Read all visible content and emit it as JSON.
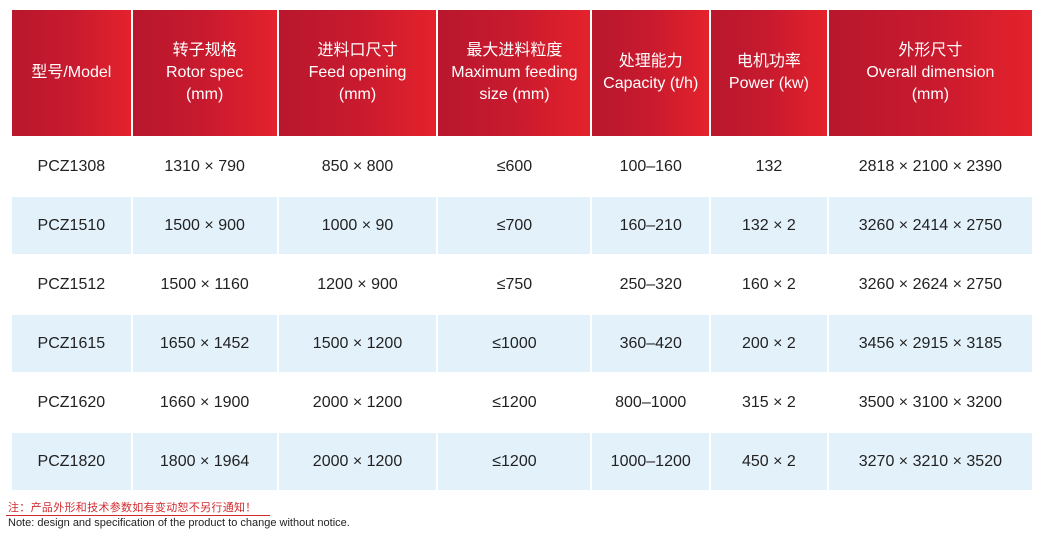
{
  "table": {
    "headers": [
      [
        "型号/Model"
      ],
      [
        "转子规格",
        "Rotor spec",
        "(mm)"
      ],
      [
        "进料口尺寸",
        "Feed opening",
        "(mm)"
      ],
      [
        "最大进料粒度",
        "Maximum feeding",
        "size (mm)"
      ],
      [
        "处理能力",
        "Capacity (t/h)"
      ],
      [
        "电机功率",
        "Power (kw)"
      ],
      [
        "外形尺寸",
        "Overall dimension",
        "(mm)"
      ]
    ],
    "rows": [
      [
        "PCZ1308",
        "1310 × 790",
        "850 × 800",
        "≤600",
        "100–160",
        "132",
        "2818 × 2100 × 2390"
      ],
      [
        "PCZ1510",
        "1500 × 900",
        "1000 × 90",
        "≤700",
        "160–210",
        "132 × 2",
        "3260 × 2414 × 2750"
      ],
      [
        "PCZ1512",
        "1500 × 1160",
        "1200 × 900",
        "≤750",
        "250–320",
        "160 × 2",
        "3260 × 2624 × 2750"
      ],
      [
        "PCZ1615",
        "1650 × 1452",
        "1500 × 1200",
        "≤1000",
        "360–420",
        "200 × 2",
        "3456 × 2915 × 3185"
      ],
      [
        "PCZ1620",
        "1660 × 1900",
        "2000 × 1200",
        "≤1200",
        "800–1000",
        "315 × 2",
        "3500 × 3100 × 3200"
      ],
      [
        "PCZ1820",
        "1800 × 1964",
        "2000 × 1200",
        "≤1200",
        "1000–1200",
        "450 × 2",
        "3270 × 3210 × 3520"
      ]
    ]
  },
  "notes": {
    "cn": "注：产品外形和技术参数如有变动恕不另行通知！",
    "en": "Note: design and specification of the product to change without notice."
  },
  "colors": {
    "header_start": "#b8172d",
    "header_end": "#e4222c",
    "row_alt": "#e3f1fb",
    "note_red": "#d12a2e"
  }
}
